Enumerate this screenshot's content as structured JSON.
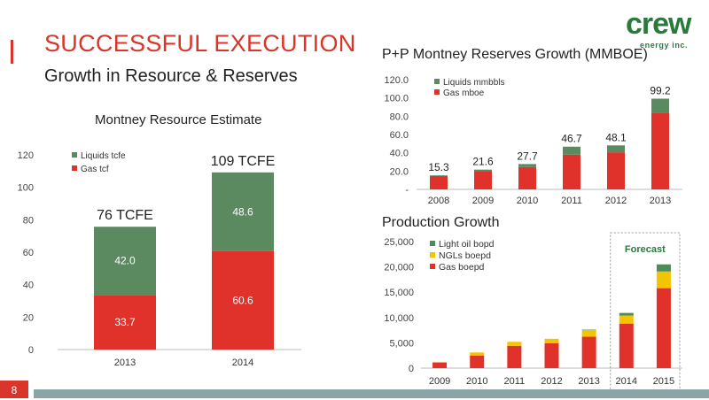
{
  "slide": {
    "title": "SUCCESSFUL EXECUTION",
    "subtitle": "Growth in Resource & Reserves",
    "page_number": "8"
  },
  "logo": {
    "word": "crew",
    "tagline": "energy inc."
  },
  "colors": {
    "gas": "#e0322b",
    "liquids": "#5b8a61",
    "ngl": "#f5c400",
    "light_oil": "#4f8a5a",
    "brand_red": "#d9352b",
    "brand_green": "#2b7a3d"
  },
  "chart_data": [
    {
      "id": "resource",
      "type": "bar",
      "stacked": true,
      "title": "Montney Resource Estimate",
      "categories": [
        "2013",
        "2014"
      ],
      "series": [
        {
          "name": "Gas tcf",
          "values": [
            33.7,
            60.6
          ]
        },
        {
          "name": "Liquids tcfe",
          "values": [
            42.0,
            48.6
          ]
        }
      ],
      "totals": [
        "76 TCFE",
        "109 TCFE"
      ],
      "ylim": [
        0,
        120
      ],
      "yticks": [
        "0",
        "20",
        "40",
        "60",
        "80",
        "100",
        "120"
      ],
      "legend": "top-left"
    },
    {
      "id": "reserves",
      "type": "bar",
      "stacked": true,
      "title": "P+P Montney Reserves Growth (MMBOE)",
      "categories": [
        "2008",
        "2009",
        "2010",
        "2011",
        "2012",
        "2013"
      ],
      "series": [
        {
          "name": "Gas mboe",
          "values": [
            14.5,
            19.8,
            24.4,
            38.0,
            40.5,
            84.0
          ]
        },
        {
          "name": "Liquids mmbbls",
          "values": [
            0.8,
            1.8,
            3.3,
            8.7,
            7.6,
            15.2
          ]
        }
      ],
      "totals": [
        "15.3",
        "21.6",
        "27.7",
        "46.7",
        "48.1",
        "99.2"
      ],
      "ylim": [
        0,
        120
      ],
      "yticks": [
        "-",
        "20.0",
        "40.0",
        "60.0",
        "80.0",
        "100.0",
        "120.0"
      ],
      "legend": "top-left"
    },
    {
      "id": "production",
      "type": "bar",
      "stacked": true,
      "title": "Production Growth",
      "categories": [
        "2009",
        "2010",
        "2011",
        "2012",
        "2013",
        "2014",
        "2015"
      ],
      "series": [
        {
          "name": "Gas boepd",
          "values": [
            1100,
            2500,
            4400,
            4900,
            6200,
            8800,
            15800
          ]
        },
        {
          "name": "NGLs boepd",
          "values": [
            150,
            600,
            800,
            900,
            1300,
            1600,
            3300
          ]
        },
        {
          "name": "Light oil bopd",
          "values": [
            0,
            0,
            0,
            0,
            100,
            500,
            1400
          ]
        }
      ],
      "ylim": [
        0,
        25000
      ],
      "yticks": [
        "0",
        "5,000",
        "10,000",
        "15,000",
        "20,000",
        "25,000"
      ],
      "annotation": "Forecast",
      "forecast_categories": [
        "2014",
        "2015"
      ],
      "legend": "top-left"
    }
  ]
}
